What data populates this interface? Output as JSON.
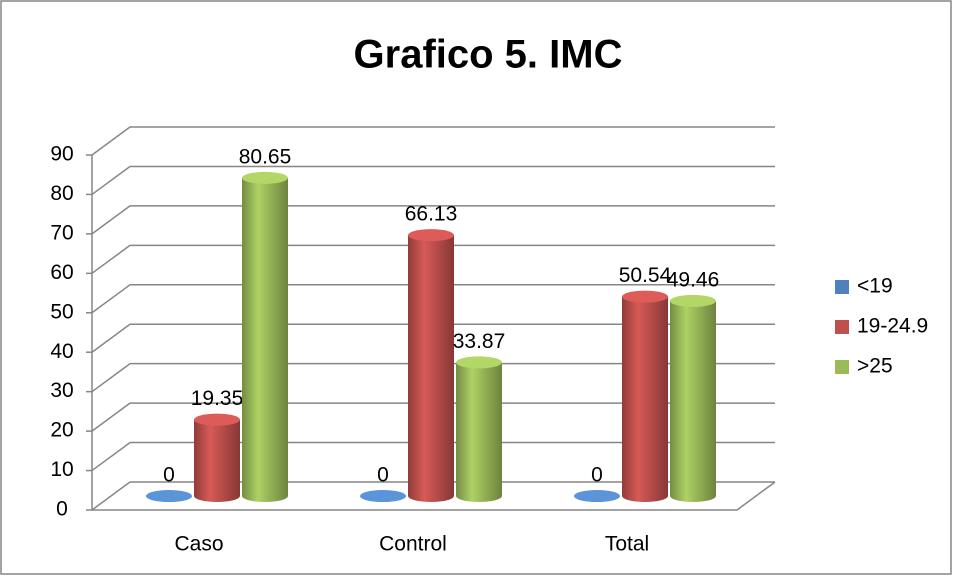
{
  "chart_data": {
    "type": "bar3d",
    "title": "Grafico 5. IMC",
    "categories": [
      "Caso",
      "Control",
      "Total"
    ],
    "series": [
      {
        "name": "<19",
        "color": "#4f81bd",
        "values": [
          0,
          0,
          0
        ]
      },
      {
        "name": "19-24.9",
        "color": "#c0504d",
        "values": [
          19.35,
          66.13,
          50.54
        ]
      },
      {
        "name": ">25",
        "color": "#9bbb59",
        "values": [
          80.65,
          33.87,
          49.46
        ]
      }
    ],
    "ylim": [
      0,
      90
    ],
    "yticks": [
      0,
      10,
      20,
      30,
      40,
      50,
      60,
      70,
      80,
      90
    ],
    "grid": true,
    "legend": "right"
  }
}
